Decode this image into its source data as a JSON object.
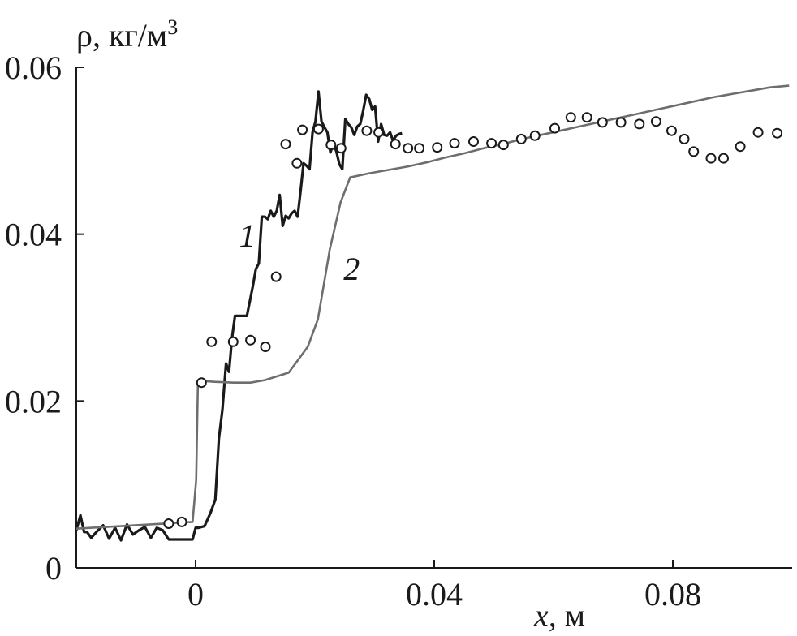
{
  "chart_data": {
    "type": "line",
    "title": "",
    "ylabel": "ρ, кг/м",
    "ylabel_sup": "3",
    "xlabel_var": "x",
    "xlabel_unit": ", м",
    "xlim": [
      -0.02,
      0.1
    ],
    "ylim": [
      0,
      0.06
    ],
    "x_ticks": [
      0,
      0.04,
      0.08
    ],
    "x_tick_labels": [
      "0",
      "0.04",
      "0.08"
    ],
    "y_ticks": [
      0,
      0.02,
      0.04,
      0.06
    ],
    "y_tick_labels": [
      "0",
      "0.02",
      "0.04",
      "0.06"
    ],
    "grid": false,
    "legend": "none",
    "series": [
      {
        "name": "1",
        "style": "line",
        "color": "#1a1a1a",
        "label_position": {
          "x": 0.0073,
          "y": 0.0385
        },
        "x": [
          -0.02,
          -0.0193,
          -0.0187,
          -0.0182,
          -0.0175,
          -0.0165,
          -0.0155,
          -0.0145,
          -0.0135,
          -0.0125,
          -0.0115,
          -0.0105,
          -0.0095,
          -0.0085,
          -0.0075,
          -0.0065,
          -0.0055,
          -0.0045,
          -0.0035,
          -0.0025,
          -0.0015,
          -0.0005,
          0.0,
          0.0005,
          0.0015,
          0.0025,
          0.0033,
          0.0039,
          0.0045,
          0.0051,
          0.0056,
          0.0061,
          0.0066,
          0.0071,
          0.0076,
          0.0086,
          0.0091,
          0.0096,
          0.0101,
          0.0106,
          0.0111,
          0.0116,
          0.0121,
          0.0126,
          0.0131,
          0.0136,
          0.0141,
          0.0146,
          0.0151,
          0.0156,
          0.0161,
          0.0166,
          0.0171,
          0.0176,
          0.0181,
          0.0186,
          0.0191,
          0.0196,
          0.0201,
          0.0206,
          0.0211,
          0.0216,
          0.0221,
          0.0226,
          0.0231,
          0.0236,
          0.0241,
          0.0246,
          0.0251,
          0.0256,
          0.0261,
          0.0266,
          0.0271,
          0.0276,
          0.0281,
          0.0286,
          0.0291,
          0.0296,
          0.0301,
          0.0306,
          0.0311,
          0.0316,
          0.0321,
          0.0326,
          0.0331,
          0.0336,
          0.0341,
          0.0346
        ],
        "y": [
          0.0045,
          0.0063,
          0.0043,
          0.0043,
          0.0036,
          0.0044,
          0.0051,
          0.0035,
          0.0048,
          0.0033,
          0.0052,
          0.004,
          0.0045,
          0.0049,
          0.0036,
          0.0048,
          0.0045,
          0.0034,
          0.0034,
          0.0034,
          0.0034,
          0.0034,
          0.0048,
          0.0048,
          0.005,
          0.0066,
          0.0082,
          0.0155,
          0.019,
          0.0245,
          0.0235,
          0.0275,
          0.0302,
          0.0302,
          0.0302,
          0.0302,
          0.032,
          0.0338,
          0.0358,
          0.0365,
          0.0421,
          0.0421,
          0.0418,
          0.0428,
          0.0421,
          0.0428,
          0.0447,
          0.041,
          0.0422,
          0.0419,
          0.0425,
          0.0428,
          0.0421,
          0.0452,
          0.0485,
          0.0482,
          0.0478,
          0.0522,
          0.0535,
          0.0571,
          0.0535,
          0.0528,
          0.0522,
          0.0498,
          0.0509,
          0.0499,
          0.0484,
          0.0478,
          0.0538,
          0.0532,
          0.0528,
          0.0519,
          0.0529,
          0.0532,
          0.0548,
          0.0567,
          0.0562,
          0.0549,
          0.0553,
          0.0511,
          0.0532,
          0.0519,
          0.0518,
          0.0522,
          0.0512,
          0.0518,
          0.052,
          0.0521
        ]
      },
      {
        "name": "2",
        "style": "line",
        "color": "#6e6e6e",
        "label_position": {
          "x": 0.0248,
          "y": 0.0345
        },
        "x": [
          -0.02,
          -0.0005,
          0.0001,
          0.0004,
          0.0008,
          0.0012,
          0.0032,
          0.0064,
          0.0092,
          0.0116,
          0.0156,
          0.0188,
          0.0205,
          0.0225,
          0.0243,
          0.0259,
          0.0291,
          0.0323,
          0.0355,
          0.0387,
          0.0419,
          0.0451,
          0.0483,
          0.0515,
          0.0547,
          0.0579,
          0.0611,
          0.0643,
          0.0675,
          0.0707,
          0.0739,
          0.0771,
          0.0803,
          0.0835,
          0.0867,
          0.0899,
          0.0931,
          0.0963,
          0.0995
        ],
        "y": [
          0.0047,
          0.0055,
          0.0105,
          0.0224,
          0.0224,
          0.0224,
          0.0223,
          0.0222,
          0.0222,
          0.0225,
          0.0234,
          0.0265,
          0.0298,
          0.0382,
          0.0438,
          0.0468,
          0.0473,
          0.0477,
          0.0481,
          0.0486,
          0.0492,
          0.0497,
          0.0503,
          0.0508,
          0.0514,
          0.0519,
          0.0524,
          0.0529,
          0.0534,
          0.0539,
          0.0544,
          0.0549,
          0.0554,
          0.0559,
          0.0564,
          0.0568,
          0.0572,
          0.0576,
          0.0578
        ]
      },
      {
        "name": "",
        "style": "markers",
        "color": "#1a1a1a",
        "x": [
          -0.0045,
          -0.0023,
          0.001,
          0.0027,
          0.0063,
          0.0092,
          0.0117,
          0.0135,
          0.0151,
          0.017,
          0.0179,
          0.0206,
          0.0227,
          0.0244,
          0.0287,
          0.0307,
          0.0335,
          0.0356,
          0.0375,
          0.0405,
          0.0434,
          0.0466,
          0.0496,
          0.0516,
          0.0546,
          0.0569,
          0.0602,
          0.0629,
          0.0656,
          0.0682,
          0.0713,
          0.0744,
          0.0772,
          0.0798,
          0.0819,
          0.0835,
          0.0864,
          0.0885,
          0.0913,
          0.0943,
          0.0975
        ],
        "y": [
          0.0053,
          0.0055,
          0.0222,
          0.0271,
          0.0271,
          0.0273,
          0.0265,
          0.0349,
          0.0508,
          0.0485,
          0.0525,
          0.0526,
          0.0507,
          0.0503,
          0.0524,
          0.0522,
          0.0508,
          0.0503,
          0.0503,
          0.0504,
          0.0509,
          0.0511,
          0.0509,
          0.0507,
          0.0514,
          0.0518,
          0.0527,
          0.054,
          0.054,
          0.0534,
          0.0534,
          0.0532,
          0.0535,
          0.0524,
          0.0514,
          0.0499,
          0.0491,
          0.0491,
          0.0505,
          0.0522,
          0.0521
        ]
      }
    ]
  }
}
